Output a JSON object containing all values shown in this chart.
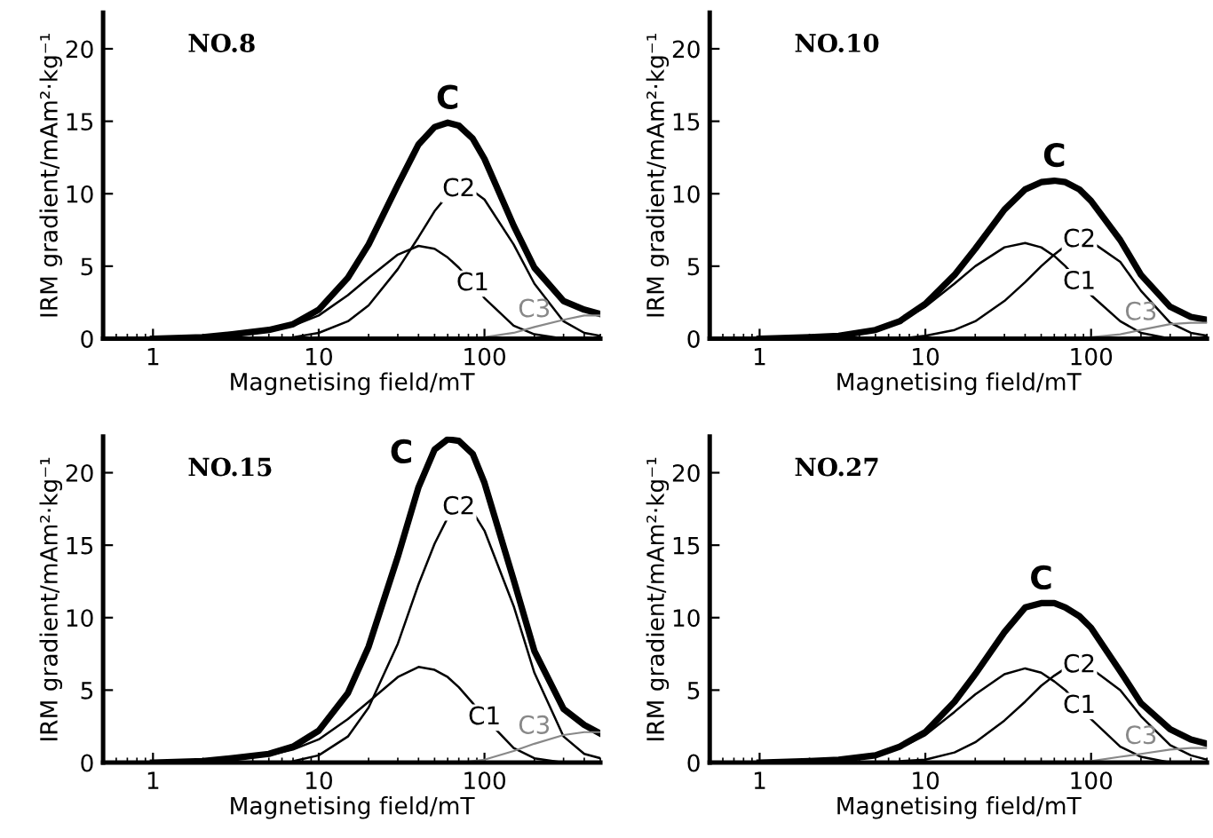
{
  "chart_data": [
    {
      "type": "line",
      "title": "NO.8",
      "xlabel": "Magnetising field/mT",
      "ylabel": "IRM gradient/mAm²·kg⁻¹",
      "log": "x",
      "xlim": [
        0.5,
        500
      ],
      "xticks": [
        1,
        10,
        100
      ],
      "ylim": [
        0,
        22.5
      ],
      "yticks": [
        0,
        5,
        10,
        15,
        20
      ],
      "grid": false,
      "x": [
        1,
        2,
        3,
        5,
        7,
        10,
        15,
        20,
        30,
        40,
        50,
        60,
        70,
        85,
        100,
        150,
        200,
        300,
        400,
        500
      ],
      "series": [
        {
          "name": "C",
          "color": "#000000",
          "values": [
            0,
            0.1,
            0.3,
            0.6,
            1.0,
            2.0,
            4.2,
            6.5,
            10.6,
            13.4,
            14.6,
            14.9,
            14.7,
            13.8,
            12.4,
            7.8,
            4.9,
            2.6,
            2.0,
            1.7
          ]
        },
        {
          "name": "C1",
          "color": "#000000",
          "x": [
            2,
            3,
            5,
            7,
            10,
            15,
            20,
            30,
            40,
            50,
            60,
            70,
            85,
            100,
            150,
            200,
            300
          ],
          "values": [
            0.1,
            0.2,
            0.5,
            0.9,
            1.6,
            3.0,
            4.2,
            5.8,
            6.4,
            6.2,
            5.6,
            4.9,
            3.8,
            2.8,
            0.9,
            0.3,
            0
          ]
        },
        {
          "name": "C2",
          "color": "#000000",
          "x": [
            7,
            10,
            15,
            20,
            30,
            40,
            50,
            60,
            70,
            85,
            100,
            150,
            200,
            300,
            400,
            500
          ],
          "values": [
            0.1,
            0.4,
            1.2,
            2.3,
            4.8,
            7.0,
            8.8,
            9.9,
            10.3,
            10.2,
            9.6,
            6.5,
            3.8,
            1.2,
            0.4,
            0.2
          ]
        },
        {
          "name": "C3",
          "color": "#888888",
          "x": [
            70,
            100,
            150,
            200,
            300,
            400,
            500
          ],
          "values": [
            0,
            0.1,
            0.4,
            0.8,
            1.3,
            1.6,
            1.6
          ]
        }
      ]
    },
    {
      "type": "line",
      "title": "NO.10",
      "xlabel": "Magnetising field/mT",
      "ylabel": "IRM gradient/mAm²·kg⁻¹",
      "log": "x",
      "xlim": [
        0.5,
        500
      ],
      "xticks": [
        1,
        10,
        100
      ],
      "ylim": [
        0,
        22.5
      ],
      "yticks": [
        0,
        5,
        10,
        15,
        20
      ],
      "grid": false,
      "x": [
        1,
        2,
        3,
        5,
        7,
        10,
        15,
        20,
        30,
        40,
        50,
        60,
        70,
        85,
        100,
        150,
        200,
        300,
        400,
        500
      ],
      "series": [
        {
          "name": "C",
          "color": "#000000",
          "values": [
            0,
            0.1,
            0.2,
            0.6,
            1.2,
            2.4,
            4.4,
            6.2,
            8.9,
            10.3,
            10.8,
            10.9,
            10.8,
            10.3,
            9.5,
            6.8,
            4.4,
            2.2,
            1.5,
            1.3
          ]
        },
        {
          "name": "C1",
          "color": "#000000",
          "x": [
            2,
            3,
            5,
            7,
            10,
            15,
            20,
            30,
            40,
            50,
            60,
            70,
            85,
            100,
            150,
            200,
            300
          ],
          "values": [
            0.1,
            0.2,
            0.6,
            1.2,
            2.2,
            3.8,
            5.0,
            6.3,
            6.6,
            6.3,
            5.7,
            5.0,
            3.9,
            3.0,
            1.2,
            0.4,
            0
          ]
        },
        {
          "name": "C2",
          "color": "#000000",
          "x": [
            7,
            10,
            15,
            20,
            30,
            40,
            50,
            60,
            70,
            85,
            100,
            150,
            200,
            300,
            400,
            500
          ],
          "values": [
            0,
            0.2,
            0.6,
            1.2,
            2.6,
            3.9,
            5.0,
            5.8,
            6.4,
            6.8,
            6.7,
            5.3,
            3.3,
            1.1,
            0.4,
            0.2
          ]
        },
        {
          "name": "C3",
          "color": "#888888",
          "x": [
            70,
            100,
            150,
            200,
            300,
            400,
            500
          ],
          "values": [
            0,
            0.1,
            0.3,
            0.6,
            1.0,
            1.1,
            1.1
          ]
        }
      ]
    },
    {
      "type": "line",
      "title": "NO.15",
      "xlabel": "Magnetising field/mT",
      "ylabel": "IRM gradient/mAm²·kg⁻¹",
      "log": "x",
      "xlim": [
        0.5,
        500
      ],
      "xticks": [
        1,
        10,
        100
      ],
      "ylim": [
        0,
        22.5
      ],
      "yticks": [
        0,
        5,
        10,
        15,
        20
      ],
      "grid": false,
      "x": [
        1,
        2,
        3,
        5,
        7,
        10,
        15,
        20,
        30,
        40,
        50,
        60,
        70,
        85,
        100,
        150,
        200,
        300,
        400,
        500
      ],
      "series": [
        {
          "name": "C",
          "color": "#000000",
          "values": [
            0,
            0.1,
            0.3,
            0.6,
            1.1,
            2.2,
            4.8,
            8.0,
            14.2,
            19.0,
            21.6,
            22.3,
            22.2,
            21.3,
            19.3,
            12.6,
            7.7,
            3.7,
            2.6,
            2.0
          ]
        },
        {
          "name": "C1",
          "color": "#000000",
          "x": [
            2,
            3,
            5,
            7,
            10,
            15,
            20,
            30,
            40,
            50,
            60,
            70,
            85,
            100,
            150,
            200,
            300
          ],
          "values": [
            0.1,
            0.2,
            0.5,
            0.9,
            1.6,
            3.0,
            4.2,
            5.9,
            6.6,
            6.4,
            5.9,
            5.2,
            4.1,
            3.1,
            1.0,
            0.3,
            0
          ]
        },
        {
          "name": "C2",
          "color": "#000000",
          "x": [
            7,
            10,
            15,
            20,
            30,
            40,
            50,
            60,
            70,
            85,
            100,
            150,
            200,
            300,
            400,
            500
          ],
          "values": [
            0.1,
            0.5,
            1.8,
            3.8,
            8.2,
            12.3,
            15.1,
            16.9,
            17.6,
            17.3,
            16.0,
            10.8,
            6.2,
            1.8,
            0.6,
            0.3
          ]
        },
        {
          "name": "C3",
          "color": "#888888",
          "x": [
            70,
            100,
            150,
            200,
            300,
            400,
            500
          ],
          "values": [
            0,
            0.2,
            0.8,
            1.3,
            1.9,
            2.1,
            2.1
          ]
        }
      ]
    },
    {
      "type": "line",
      "title": "NO.27",
      "xlabel": "Magnetising field/mT",
      "ylabel": "IRM gradient/mAm²·kg⁻¹",
      "log": "x",
      "xlim": [
        0.5,
        500
      ],
      "xticks": [
        1,
        10,
        100
      ],
      "ylim": [
        0,
        22.5
      ],
      "yticks": [
        0,
        5,
        10,
        15,
        20
      ],
      "grid": false,
      "x": [
        1,
        2,
        3,
        5,
        7,
        10,
        15,
        20,
        30,
        40,
        50,
        60,
        70,
        85,
        100,
        150,
        200,
        300,
        400,
        500
      ],
      "series": [
        {
          "name": "C",
          "color": "#000000",
          "values": [
            0,
            0.1,
            0.2,
            0.5,
            1.1,
            2.1,
            4.2,
            6.1,
            9.0,
            10.7,
            11.0,
            11.0,
            10.7,
            10.1,
            9.3,
            6.3,
            4.1,
            2.3,
            1.6,
            1.3
          ]
        },
        {
          "name": "C1",
          "color": "#000000",
          "x": [
            2,
            3,
            5,
            7,
            10,
            15,
            20,
            30,
            40,
            50,
            60,
            70,
            85,
            100,
            150,
            200,
            300
          ],
          "values": [
            0.1,
            0.2,
            0.5,
            1.0,
            1.9,
            3.5,
            4.7,
            6.1,
            6.5,
            6.2,
            5.6,
            5.0,
            3.9,
            3.0,
            1.1,
            0.4,
            0
          ]
        },
        {
          "name": "C2",
          "color": "#000000",
          "x": [
            7,
            10,
            15,
            20,
            30,
            40,
            50,
            60,
            70,
            85,
            100,
            150,
            200,
            300,
            400,
            500
          ],
          "values": [
            0.1,
            0.2,
            0.7,
            1.4,
            2.9,
            4.2,
            5.3,
            6.0,
            6.5,
            6.7,
            6.5,
            5.0,
            3.2,
            1.2,
            0.5,
            0.2
          ]
        },
        {
          "name": "C3",
          "color": "#888888",
          "x": [
            70,
            100,
            150,
            200,
            300,
            400,
            500
          ],
          "values": [
            0,
            0.1,
            0.4,
            0.6,
            0.9,
            1.0,
            1.0
          ]
        }
      ]
    }
  ]
}
